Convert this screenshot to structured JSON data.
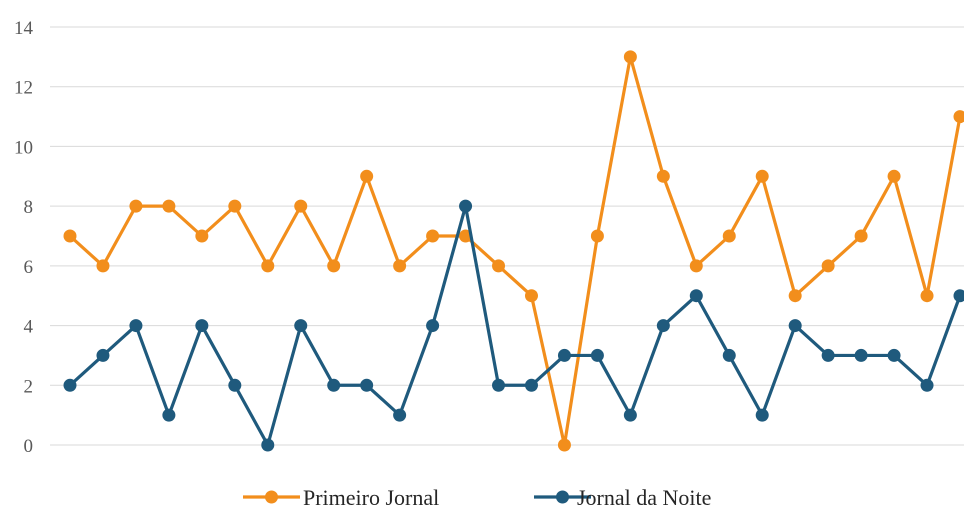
{
  "chart_data": {
    "type": "line",
    "title": "",
    "xlabel": "",
    "ylabel": "",
    "ylim": [
      0,
      14
    ],
    "yticks": [
      0,
      2,
      4,
      6,
      8,
      10,
      12,
      14
    ],
    "grid": true,
    "legend_position": "bottom",
    "x_count": 28,
    "series": [
      {
        "name": "Primeiro Jornal",
        "color": "#F28E1C",
        "values": [
          7,
          6,
          8,
          8,
          7,
          8,
          6,
          8,
          6,
          9,
          6,
          7,
          7,
          6,
          5,
          0,
          7,
          13,
          9,
          6,
          7,
          9,
          5,
          6,
          7,
          9,
          5,
          11
        ]
      },
      {
        "name": "Jornal da Noite",
        "color": "#1F5A7D",
        "values": [
          2,
          3,
          4,
          1,
          4,
          2,
          0,
          4,
          2,
          2,
          1,
          4,
          8,
          2,
          2,
          3,
          3,
          1,
          4,
          5,
          3,
          1,
          4,
          3,
          3,
          3,
          2,
          5
        ]
      }
    ]
  }
}
